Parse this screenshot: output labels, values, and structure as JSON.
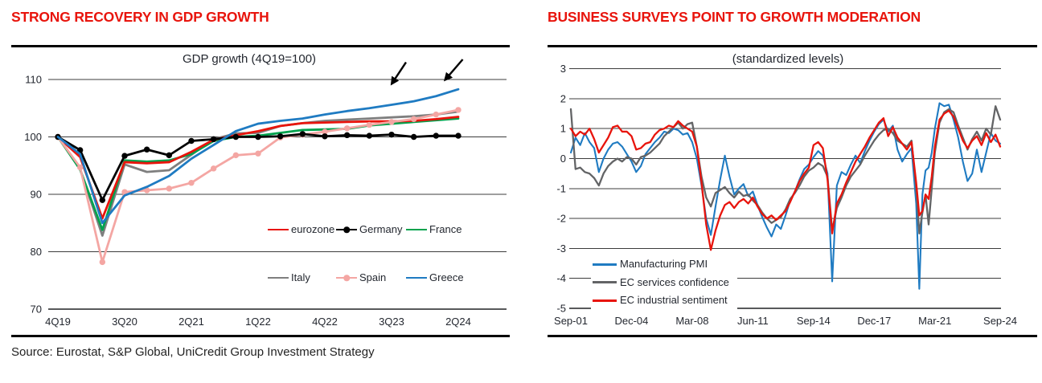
{
  "page": {
    "source_note": "Source: Eurostat, S&P Global, UniCredit Group Investment Strategy",
    "colors": {
      "accent_red": "#e8140c",
      "text_dark": "#23272f",
      "grid": "#3c3c3c",
      "axis": "#58595b"
    }
  },
  "chart_data": [
    {
      "id": "gdp_growth",
      "type": "line",
      "panel_title": "STRONG RECOVERY IN GDP GROWTH",
      "title": "GDP growth (4Q19=100)",
      "x_tick_labels": [
        "4Q19",
        "3Q20",
        "2Q21",
        "1Q22",
        "4Q22",
        "3Q23",
        "2Q24"
      ],
      "x_tick_indices": [
        0,
        3,
        6,
        9,
        12,
        15,
        18
      ],
      "n_points": 19,
      "ylim": [
        70,
        110
      ],
      "y_ticks": [
        110,
        100,
        90,
        80,
        70
      ],
      "grid": true,
      "legend_position": "inside lower right, two rows",
      "series": [
        {
          "name": "Italy",
          "color": "#7f7f7f",
          "marker": false,
          "values": [
            100,
            94.4,
            82.8,
            95.2,
            93.9,
            94.2,
            96.9,
            99.6,
            100.6,
            100.7,
            101.9,
            102.4,
            102.8,
            103.0,
            103.2,
            103.4,
            103.6,
            103.9,
            104.4
          ]
        },
        {
          "name": "France",
          "color": "#00a24d",
          "marker": false,
          "values": [
            100,
            94.3,
            83.8,
            95.9,
            95.7,
            95.9,
            97.0,
            99.3,
            100.0,
            100.2,
            100.7,
            101.2,
            101.3,
            101.4,
            102.0,
            102.3,
            102.6,
            102.9,
            103.2
          ]
        },
        {
          "name": "eurozone",
          "color": "#e8140c",
          "marker": false,
          "values": [
            100,
            96.5,
            85.8,
            95.6,
            95.4,
            95.6,
            97.4,
            99.5,
            100.3,
            101.0,
            101.9,
            102.4,
            102.5,
            102.6,
            102.7,
            102.7,
            102.8,
            103.1,
            103.5
          ]
        },
        {
          "name": "Spain",
          "color": "#f4a6a3",
          "marker": true,
          "values": [
            100,
            94.7,
            78.2,
            90.4,
            90.7,
            91.0,
            92.0,
            94.5,
            96.8,
            97.1,
            99.9,
            100.4,
            100.9,
            101.5,
            102.1,
            102.6,
            103.1,
            103.9,
            104.7
          ]
        },
        {
          "name": "Germany",
          "color": "#000000",
          "marker": true,
          "values": [
            100,
            97.7,
            89.0,
            96.7,
            97.8,
            96.8,
            99.3,
            99.6,
            100.0,
            100.0,
            100.1,
            100.5,
            100.1,
            100.3,
            100.2,
            100.4,
            100.0,
            100.2,
            100.2
          ]
        },
        {
          "name": "Greece",
          "color": "#1f7bc2",
          "marker": false,
          "values": [
            100,
            97.0,
            85.0,
            89.8,
            91.3,
            93.2,
            96.2,
            98.6,
            101.0,
            102.3,
            102.8,
            103.2,
            103.9,
            104.5,
            105.0,
            105.6,
            106.2,
            107.1,
            108.3
          ]
        }
      ],
      "legend_order": [
        "eurozone",
        "Germany",
        "France",
        "Italy",
        "Spain",
        "Greece"
      ],
      "annotation_arrows": [
        {
          "tail_q": 15.65,
          "tail_v": 113.0,
          "tip_q": 15.0,
          "tip_v": 109.2
        },
        {
          "tail_q": 18.2,
          "tail_v": 113.5,
          "tip_q": 17.4,
          "tip_v": 109.9
        }
      ]
    },
    {
      "id": "business_surveys",
      "type": "line",
      "panel_title": "BUSINESS SURVEYS POINT TO GROWTH MODERATION",
      "title": "(standardized levels)",
      "x_unit": "months since Sep-2001",
      "xlim": [
        0,
        276
      ],
      "x_tick_labels": [
        "Sep-01",
        "Dec-04",
        "Mar-08",
        "Jun-11",
        "Sep-14",
        "Dec-17",
        "Mar-21",
        "Sep-24"
      ],
      "x_tick_months": [
        0,
        39,
        78,
        117,
        156,
        195,
        234,
        276
      ],
      "ylim": [
        -5,
        3
      ],
      "y_ticks": [
        3,
        2,
        1,
        0,
        -1,
        -2,
        -3,
        -4,
        -5
      ],
      "grid": true,
      "legend_position": "inside lower left, stacked",
      "x": [
        0,
        3,
        6,
        9,
        12,
        15,
        18,
        21,
        24,
        27,
        30,
        33,
        36,
        39,
        42,
        45,
        48,
        51,
        54,
        57,
        60,
        63,
        66,
        69,
        72,
        75,
        78,
        81,
        84,
        87,
        90,
        93,
        96,
        99,
        102,
        105,
        108,
        111,
        114,
        117,
        120,
        123,
        126,
        129,
        132,
        135,
        138,
        141,
        144,
        147,
        150,
        153,
        156,
        159,
        162,
        165,
        168,
        171,
        174,
        177,
        180,
        183,
        186,
        189,
        192,
        195,
        198,
        201,
        204,
        207,
        210,
        213,
        216,
        219,
        222,
        224,
        226,
        228,
        230,
        232,
        234,
        237,
        240,
        243,
        246,
        249,
        252,
        255,
        258,
        261,
        264,
        267,
        270,
        273,
        276
      ],
      "series": [
        {
          "name": "Manufacturing PMI",
          "color": "#1f7bc2",
          "values": [
            0.2,
            0.7,
            0.45,
            0.85,
            0.55,
            0.35,
            -0.45,
            0.0,
            0.3,
            0.5,
            0.55,
            0.4,
            0.15,
            -0.1,
            -0.45,
            -0.25,
            0.15,
            0.35,
            0.55,
            0.7,
            0.9,
            0.85,
            1.0,
            0.95,
            0.8,
            0.85,
            0.55,
            0.0,
            -0.9,
            -2.0,
            -2.55,
            -1.6,
            -0.7,
            0.1,
            -0.6,
            -1.2,
            -1.0,
            -0.85,
            -1.25,
            -1.1,
            -1.55,
            -1.95,
            -2.3,
            -2.6,
            -2.2,
            -2.35,
            -1.9,
            -1.4,
            -1.1,
            -0.7,
            -0.35,
            -0.2,
            0.05,
            0.25,
            0.1,
            -0.5,
            -4.1,
            -0.9,
            -0.45,
            -0.55,
            -0.2,
            0.1,
            -0.15,
            0.25,
            0.6,
            0.9,
            1.15,
            1.3,
            0.9,
            1.1,
            0.3,
            -0.1,
            0.15,
            0.35,
            -1.5,
            -4.35,
            -1.2,
            -0.4,
            -0.3,
            0.2,
            1.0,
            1.85,
            1.75,
            1.8,
            1.3,
            0.7,
            -0.1,
            -0.75,
            -0.5,
            0.3,
            -0.45,
            0.2,
            0.85,
            0.6,
            0.5
          ]
        },
        {
          "name": "EC services confidence",
          "color": "#636466",
          "values": [
            1.65,
            -0.35,
            -0.3,
            -0.45,
            -0.5,
            -0.65,
            -0.9,
            -0.5,
            -0.25,
            -0.1,
            0.0,
            -0.1,
            0.05,
            0.0,
            -0.2,
            0.05,
            0.1,
            0.2,
            0.35,
            0.5,
            0.75,
            0.9,
            1.05,
            1.2,
            1.0,
            1.15,
            1.2,
            0.4,
            -0.6,
            -1.3,
            -1.6,
            -1.15,
            -1.05,
            -0.95,
            -1.15,
            -1.3,
            -1.1,
            -1.25,
            -1.2,
            -1.4,
            -1.55,
            -1.8,
            -2.0,
            -2.15,
            -2.05,
            -1.95,
            -1.7,
            -1.35,
            -1.15,
            -0.9,
            -0.6,
            -0.4,
            -0.3,
            -0.15,
            -0.25,
            -0.6,
            -2.4,
            -1.65,
            -1.3,
            -0.9,
            -0.6,
            -0.4,
            -0.2,
            0.1,
            0.35,
            0.6,
            0.8,
            0.95,
            1.0,
            0.85,
            0.6,
            0.5,
            0.4,
            0.6,
            -1.0,
            -2.5,
            -1.8,
            -1.2,
            -2.2,
            -1.0,
            0.2,
            1.2,
            1.55,
            1.65,
            1.55,
            1.1,
            0.7,
            0.3,
            0.65,
            0.9,
            0.6,
            1.0,
            0.8,
            1.75,
            1.3
          ]
        },
        {
          "name": "EC industrial sentiment",
          "color": "#e8140c",
          "values": [
            1.0,
            0.75,
            0.9,
            0.8,
            1.0,
            0.65,
            0.2,
            0.45,
            0.7,
            1.05,
            1.1,
            0.9,
            0.9,
            0.75,
            0.3,
            0.35,
            0.5,
            0.55,
            0.8,
            0.95,
            1.0,
            1.1,
            1.05,
            1.25,
            1.1,
            1.0,
            0.9,
            0.4,
            -0.8,
            -2.2,
            -3.05,
            -2.4,
            -1.9,
            -1.55,
            -1.45,
            -1.65,
            -1.45,
            -1.35,
            -1.5,
            -1.3,
            -1.6,
            -1.85,
            -2.0,
            -1.9,
            -2.05,
            -1.9,
            -1.75,
            -1.45,
            -1.1,
            -0.75,
            -0.5,
            -0.3,
            0.45,
            0.55,
            0.35,
            -0.7,
            -2.5,
            -1.5,
            -1.2,
            -0.8,
            -0.45,
            -0.1,
            0.15,
            0.4,
            0.7,
            0.95,
            1.2,
            1.35,
            0.75,
            1.05,
            0.7,
            0.5,
            0.3,
            0.55,
            -0.8,
            -1.9,
            -1.75,
            -1.2,
            -1.35,
            -0.6,
            0.4,
            1.3,
            1.5,
            1.6,
            1.4,
            1.0,
            0.6,
            0.35,
            0.6,
            0.75,
            0.45,
            0.85,
            0.55,
            0.8,
            0.4
          ]
        }
      ]
    }
  ]
}
